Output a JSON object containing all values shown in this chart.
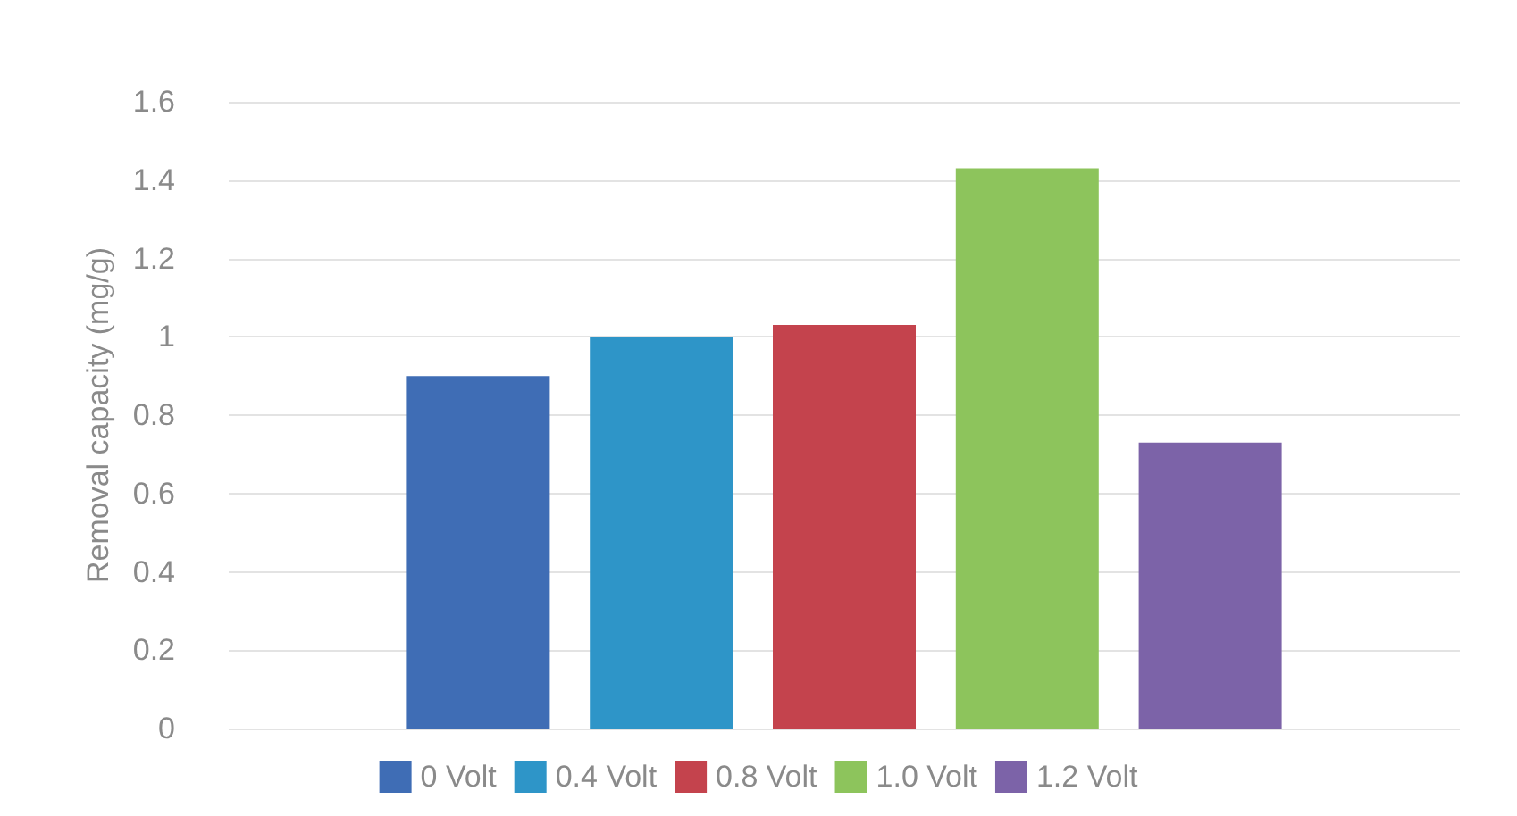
{
  "chart_data": {
    "type": "bar",
    "ylabel": "Removal capacity (mg/g)",
    "categories": [
      null
    ],
    "series": [
      {
        "name": "0 Volt",
        "color": "#3f6db5",
        "values": [
          0.9
        ]
      },
      {
        "name": "0.4 Volt",
        "color": "#2e95c8",
        "values": [
          1.0
        ]
      },
      {
        "name": "0.8 Volt",
        "color": "#c4434d",
        "values": [
          1.03
        ]
      },
      {
        "name": "1.0 Volt",
        "color": "#8dc45c",
        "values": [
          1.43
        ]
      },
      {
        "name": "1.2 Volt",
        "color": "#7c63a8",
        "values": [
          0.73
        ]
      }
    ],
    "ylim": [
      0,
      1.6
    ],
    "yticks": [
      0,
      0.2,
      0.4,
      0.6,
      0.8,
      1,
      1.2,
      1.4,
      1.6
    ],
    "grid": "y",
    "legend": "bottom"
  }
}
